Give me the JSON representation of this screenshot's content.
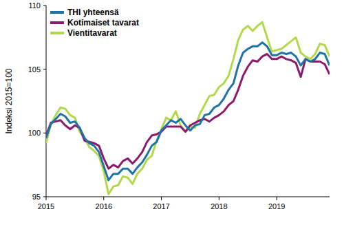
{
  "chart_data": {
    "type": "line",
    "y_label": "Indeksi 2015=100",
    "x": [
      2015,
      2015.083,
      2015.167,
      2015.25,
      2015.333,
      2015.417,
      2015.5,
      2015.583,
      2015.667,
      2015.75,
      2015.833,
      2015.917,
      2016,
      2016.083,
      2016.167,
      2016.25,
      2016.333,
      2016.417,
      2016.5,
      2016.583,
      2016.667,
      2016.75,
      2016.833,
      2016.917,
      2017,
      2017.083,
      2017.167,
      2017.25,
      2017.333,
      2017.417,
      2017.5,
      2017.583,
      2017.667,
      2017.75,
      2017.833,
      2017.917,
      2018,
      2018.083,
      2018.167,
      2018.25,
      2018.333,
      2018.417,
      2018.5,
      2018.583,
      2018.667,
      2018.75,
      2018.833,
      2018.917,
      2019,
      2019.083,
      2019.167,
      2019.25,
      2019.333,
      2019.417,
      2019.5,
      2019.583,
      2019.667,
      2019.75,
      2019.833,
      2019.917
    ],
    "series": [
      {
        "name": "THI yhteensä",
        "color": "#1f74a7",
        "values": [
          99.6,
          100.7,
          101.1,
          101.5,
          101.3,
          100.8,
          100.9,
          100.4,
          99.6,
          99.2,
          99.0,
          98.5,
          97.4,
          96.3,
          96.8,
          96.8,
          97.2,
          97.2,
          96.8,
          97.3,
          97.7,
          98.3,
          99.0,
          99.3,
          100.2,
          100.6,
          101.0,
          100.8,
          101.1,
          100.6,
          100.2,
          100.6,
          100.7,
          101.4,
          101.5,
          102.0,
          102.2,
          102.7,
          103.4,
          103.9,
          105.3,
          106.3,
          106.6,
          106.8,
          106.8,
          107.1,
          106.8,
          106.1,
          106.1,
          106.3,
          106.2,
          106.3,
          106.0,
          105.3,
          105.8,
          105.6,
          105.8,
          106.3,
          106.2,
          105.3
        ]
      },
      {
        "name": "Kotimaiset tavarat",
        "color": "#8c1b6b",
        "values": [
          99.8,
          100.8,
          100.9,
          101.0,
          100.6,
          100.3,
          100.6,
          100.4,
          99.4,
          99.3,
          99.2,
          99.0,
          98.0,
          97.2,
          97.5,
          97.3,
          97.8,
          98.0,
          97.6,
          98.0,
          98.5,
          99.3,
          99.8,
          99.9,
          100.1,
          100.5,
          100.5,
          100.5,
          100.5,
          100.1,
          100.6,
          100.8,
          101.0,
          101.1,
          100.9,
          101.2,
          101.4,
          101.7,
          102.2,
          102.5,
          103.4,
          104.5,
          105.2,
          105.7,
          105.6,
          106.0,
          106.2,
          105.8,
          105.8,
          106.0,
          105.8,
          105.7,
          105.5,
          104.4,
          105.8,
          105.6,
          105.6,
          105.6,
          105.4,
          104.6
        ]
      },
      {
        "name": "Vientitavarat",
        "color": "#b4d84c",
        "values": [
          99.2,
          100.7,
          101.4,
          102.0,
          101.9,
          101.4,
          101.2,
          100.1,
          99.6,
          98.9,
          98.6,
          98.2,
          97.0,
          95.2,
          95.8,
          95.9,
          96.6,
          96.5,
          96.0,
          96.8,
          97.2,
          97.9,
          98.2,
          99.4,
          100.3,
          101.2,
          101.0,
          101.7,
          100.6,
          100.1,
          100.5,
          100.4,
          101.5,
          102.2,
          102.9,
          103.0,
          103.6,
          103.9,
          104.5,
          105.8,
          107.3,
          108.1,
          108.4,
          108.0,
          108.4,
          108.7,
          107.5,
          106.4,
          106.5,
          106.6,
          106.9,
          107.2,
          107.5,
          106.3,
          106.0,
          105.8,
          106.2,
          107.0,
          106.9,
          106.0
        ]
      }
    ],
    "xlim": [
      2015,
      2019.917
    ],
    "xticks": [
      2015,
      2016,
      2017,
      2018,
      2019
    ],
    "ylim": [
      95,
      110
    ],
    "yticks": [
      95,
      100,
      105,
      110
    ],
    "grid": false,
    "legend": "upper left"
  }
}
